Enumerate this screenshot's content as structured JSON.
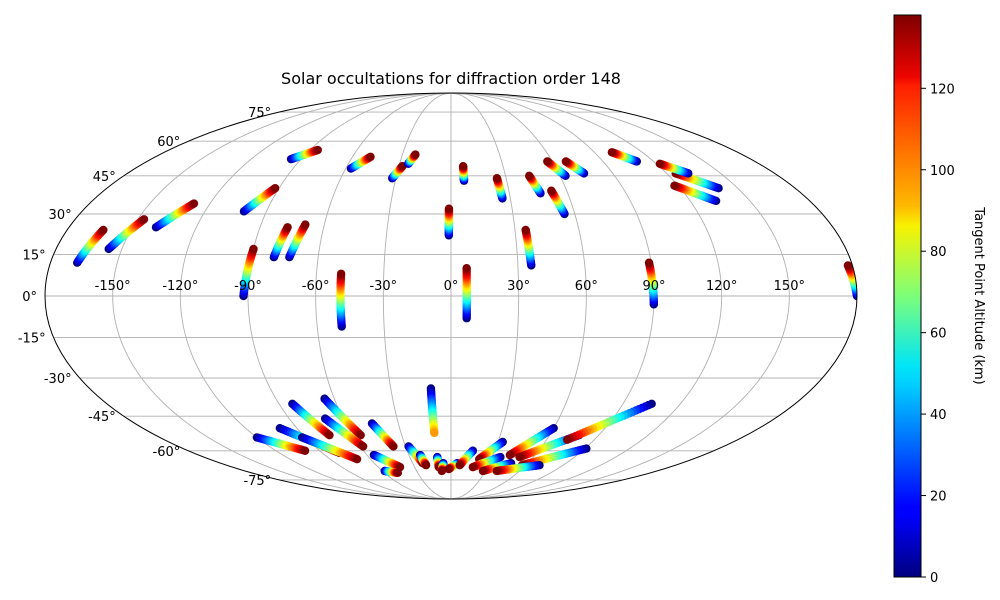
{
  "chart_data": {
    "type": "scatter",
    "projection": "mollweide",
    "title": "Solar occultations for diffraction order 148",
    "xlabel": "",
    "ylabel": "",
    "grid": true,
    "longitude_ticks": [
      "-150°",
      "-120°",
      "-90°",
      "-60°",
      "-30°",
      "0°",
      "30°",
      "60°",
      "90°",
      "120°",
      "150°"
    ],
    "latitude_ticks": [
      "75°",
      "60°",
      "45°",
      "30°",
      "15°",
      "0°",
      "-15°",
      "-30°",
      "-45°",
      "-60°",
      "-75°"
    ],
    "colorbar": {
      "label": "Tangent Point Altitude (km)",
      "colormap": "jet",
      "range": [
        0,
        138
      ],
      "ticks": [
        "0",
        "20",
        "40",
        "60",
        "80",
        "100",
        "120"
      ],
      "tick_values": [
        0,
        20,
        40,
        60,
        80,
        100,
        120
      ]
    },
    "series": [
      {
        "points": [
          {
            "lon": -168,
            "lat": 12,
            "alt": 0
          },
          {
            "lon": -163,
            "lat": 24,
            "alt": 138
          }
        ]
      },
      {
        "points": [
          {
            "lon": -156,
            "lat": 17,
            "alt": 0
          },
          {
            "lon": -147,
            "lat": 28,
            "alt": 138
          }
        ]
      },
      {
        "points": [
          {
            "lon": -139,
            "lat": 25,
            "alt": 0
          },
          {
            "lon": -128,
            "lat": 34,
            "alt": 138
          }
        ]
      },
      {
        "points": [
          {
            "lon": -101,
            "lat": 31,
            "alt": 0
          },
          {
            "lon": -92,
            "lat": 40,
            "alt": 138
          }
        ]
      },
      {
        "points": [
          {
            "lon": -96,
            "lat": 52,
            "alt": 0
          },
          {
            "lon": -85,
            "lat": 56,
            "alt": 138
          }
        ]
      },
      {
        "points": [
          {
            "lon": -92,
            "lat": 0,
            "alt": 0
          },
          {
            "lon": -90,
            "lat": 17,
            "alt": 138
          }
        ]
      },
      {
        "points": [
          {
            "lon": -80,
            "lat": 14,
            "alt": 0
          },
          {
            "lon": -77,
            "lat": 25,
            "alt": 138
          }
        ]
      },
      {
        "points": [
          {
            "lon": -73,
            "lat": 14,
            "alt": 0
          },
          {
            "lon": -69,
            "lat": 26,
            "alt": 138
          }
        ]
      },
      {
        "points": [
          {
            "lon": -57,
            "lat": 48,
            "alt": 0
          },
          {
            "lon": -49,
            "lat": 53,
            "alt": 138
          }
        ]
      },
      {
        "points": [
          {
            "lon": -49,
            "lat": -11,
            "alt": 0
          },
          {
            "lon": -49,
            "lat": 8,
            "alt": 138
          }
        ]
      },
      {
        "points": [
          {
            "lon": -32,
            "lat": 44,
            "alt": 0
          },
          {
            "lon": -28,
            "lat": 49,
            "alt": 138
          }
        ]
      },
      {
        "points": [
          {
            "lon": -25,
            "lat": 50,
            "alt": 0
          },
          {
            "lon": -22,
            "lat": 54,
            "alt": 138
          }
        ]
      },
      {
        "points": [
          {
            "lon": -1,
            "lat": 22,
            "alt": 0
          },
          {
            "lon": -1,
            "lat": 32,
            "alt": 138
          }
        ]
      },
      {
        "points": [
          {
            "lon": 7,
            "lat": 43,
            "alt": 0
          },
          {
            "lon": 7,
            "lat": 49,
            "alt": 138
          }
        ]
      },
      {
        "points": [
          {
            "lon": 7,
            "lat": -8,
            "alt": 0
          },
          {
            "lon": 7,
            "lat": 10,
            "alt": 138
          }
        ]
      },
      {
        "points": [
          {
            "lon": 26,
            "lat": 36,
            "alt": 0
          },
          {
            "lon": 25,
            "lat": 44,
            "alt": 138
          }
        ]
      },
      {
        "points": [
          {
            "lon": 36,
            "lat": 11,
            "alt": 0
          },
          {
            "lon": 35,
            "lat": 24,
            "alt": 138
          }
        ]
      },
      {
        "points": [
          {
            "lon": 46,
            "lat": 38,
            "alt": 0
          },
          {
            "lon": 43,
            "lat": 45,
            "alt": 138
          }
        ]
      },
      {
        "points": [
          {
            "lon": 55,
            "lat": 30,
            "alt": 0
          },
          {
            "lon": 52,
            "lat": 39,
            "alt": 138
          }
        ]
      },
      {
        "points": [
          {
            "lon": 63,
            "lat": 45,
            "alt": 0
          },
          {
            "lon": 57,
            "lat": 51,
            "alt": 138
          }
        ]
      },
      {
        "points": [
          {
            "lon": 74,
            "lat": 46,
            "alt": 0
          },
          {
            "lon": 68,
            "lat": 51,
            "alt": 138
          }
        ]
      },
      {
        "points": [
          {
            "lon": 90,
            "lat": -3,
            "alt": 0
          },
          {
            "lon": 89,
            "lat": 12,
            "alt": 138
          }
        ]
      },
      {
        "points": [
          {
            "lon": 110,
            "lat": 51,
            "alt": 0
          },
          {
            "lon": 101,
            "lat": 55,
            "alt": 138
          }
        ]
      },
      {
        "points": [
          {
            "lon": 133,
            "lat": 35,
            "alt": 0
          },
          {
            "lon": 118,
            "lat": 41,
            "alt": 138
          }
        ]
      },
      {
        "points": [
          {
            "lon": 140,
            "lat": 40,
            "alt": 0
          },
          {
            "lon": 125,
            "lat": 46,
            "alt": 138
          }
        ]
      },
      {
        "points": [
          {
            "lon": 132,
            "lat": 46,
            "alt": 0
          },
          {
            "lon": 122,
            "lat": 50,
            "alt": 138
          }
        ]
      },
      {
        "points": [
          {
            "lon": 180,
            "lat": 0,
            "alt": 0
          },
          {
            "lon": 178,
            "lat": 11,
            "alt": 138
          }
        ]
      },
      {
        "points": [
          {
            "lon": -10,
            "lat": -34,
            "alt": 0
          },
          {
            "lon": -10,
            "lat": -52,
            "alt": 100
          }
        ]
      },
      {
        "points": [
          {
            "lon": -83,
            "lat": -40,
            "alt": 0
          },
          {
            "lon": -74,
            "lat": -53,
            "alt": 138
          }
        ]
      },
      {
        "points": [
          {
            "lon": -65,
            "lat": -38,
            "alt": 0
          },
          {
            "lon": -55,
            "lat": -53,
            "alt": 138
          }
        ]
      },
      {
        "points": [
          {
            "lon": -70,
            "lat": -46,
            "alt": 0
          },
          {
            "lon": -58,
            "lat": -58,
            "alt": 138
          }
        ]
      },
      {
        "points": [
          {
            "lon": -45,
            "lat": -48,
            "alt": 0
          },
          {
            "lon": -38,
            "lat": -58,
            "alt": 138
          }
        ]
      },
      {
        "points": [
          {
            "lon": -120,
            "lat": -54,
            "alt": 0
          },
          {
            "lon": -100,
            "lat": -60,
            "alt": 138
          }
        ]
      },
      {
        "points": [
          {
            "lon": -100,
            "lat": -50,
            "alt": 0
          },
          {
            "lon": -78,
            "lat": -61,
            "alt": 138
          }
        ]
      },
      {
        "points": [
          {
            "lon": -92,
            "lat": -54,
            "alt": 0
          },
          {
            "lon": -70,
            "lat": -64,
            "alt": 138
          }
        ]
      },
      {
        "points": [
          {
            "lon": -55,
            "lat": -62,
            "alt": 0
          },
          {
            "lon": -42,
            "lat": -68,
            "alt": 138
          }
        ]
      },
      {
        "points": [
          {
            "lon": -58,
            "lat": -70,
            "alt": 0
          },
          {
            "lon": -48,
            "lat": -71,
            "alt": 138
          }
        ]
      },
      {
        "points": [
          {
            "lon": -28,
            "lat": -58,
            "alt": 0
          },
          {
            "lon": -22,
            "lat": -66,
            "alt": 138
          }
        ]
      },
      {
        "points": [
          {
            "lon": -22,
            "lat": -62,
            "alt": 0
          },
          {
            "lon": -20,
            "lat": -67,
            "alt": 138
          }
        ]
      },
      {
        "points": [
          {
            "lon": -10,
            "lat": -63,
            "alt": 0
          },
          {
            "lon": -10,
            "lat": -68,
            "alt": 138
          }
        ]
      },
      {
        "points": [
          {
            "lon": -6,
            "lat": -66,
            "alt": 0
          },
          {
            "lon": -8,
            "lat": -70,
            "alt": 138
          }
        ]
      },
      {
        "points": [
          {
            "lon": 5,
            "lat": -66,
            "alt": 0
          },
          {
            "lon": -2,
            "lat": -69,
            "alt": 138
          }
        ]
      },
      {
        "points": [
          {
            "lon": 15,
            "lat": -60,
            "alt": 0
          },
          {
            "lon": 7,
            "lat": -67,
            "alt": 138
          }
        ]
      },
      {
        "points": [
          {
            "lon": 33,
            "lat": -56,
            "alt": 0
          },
          {
            "lon": 21,
            "lat": -64,
            "alt": 138
          }
        ]
      },
      {
        "points": [
          {
            "lon": 36,
            "lat": -63,
            "alt": 0
          },
          {
            "lon": 18,
            "lat": -68,
            "alt": 138
          }
        ]
      },
      {
        "points": [
          {
            "lon": 47,
            "lat": -66,
            "alt": 0
          },
          {
            "lon": 28,
            "lat": -70,
            "alt": 138
          }
        ]
      },
      {
        "points": [
          {
            "lon": 60,
            "lat": -50,
            "alt": 0
          },
          {
            "lon": 42,
            "lat": -62,
            "alt": 138
          }
        ]
      },
      {
        "points": [
          {
            "lon": 78,
            "lat": -53,
            "alt": 0
          },
          {
            "lon": 50,
            "lat": -63,
            "alt": 138
          }
        ]
      },
      {
        "points": [
          {
            "lon": 91,
            "lat": -59,
            "alt": 0
          },
          {
            "lon": 57,
            "lat": -67,
            "alt": 138
          }
        ]
      },
      {
        "points": [
          {
            "lon": 71,
            "lat": -67,
            "alt": 0
          },
          {
            "lon": 40,
            "lat": -70,
            "alt": 138
          }
        ]
      },
      {
        "points": [
          {
            "lon": 105,
            "lat": -40,
            "alt": 0
          },
          {
            "lon": 73,
            "lat": -55,
            "alt": 138
          }
        ]
      }
    ]
  }
}
